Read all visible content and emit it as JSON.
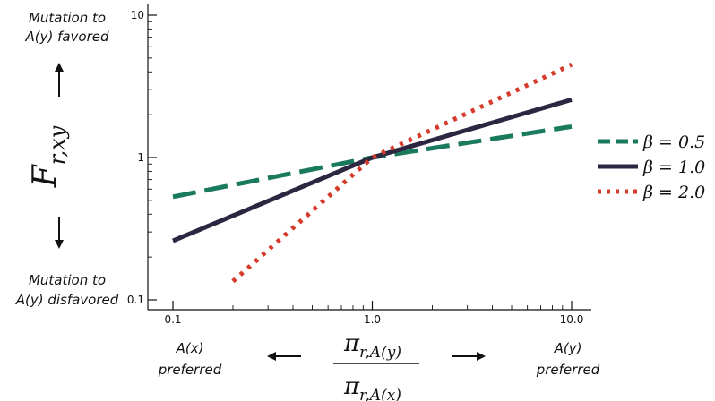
{
  "chart_data": {
    "type": "line",
    "xscale": "log",
    "yscale": "log",
    "xlim": [
      0.1,
      10.0
    ],
    "ylim": [
      0.1,
      10
    ],
    "x_ticks": [
      "0.1",
      "1.0",
      "10.0"
    ],
    "y_ticks": [
      "0.1",
      "1",
      "10"
    ],
    "ylabel": "F_{r,xy}",
    "xlabel_numerator": "π_{r,A(y)}",
    "xlabel_denominator": "π_{r,A(x)}",
    "annotations": {
      "top_left_line1": "Mutation to",
      "top_left_line2": "A(y) favored",
      "bottom_left_line1": "Mutation to",
      "bottom_left_line2": "A(y) disfavored",
      "x_left_line1": "A(x)",
      "x_left_line2": "preferred",
      "x_right_line1": "A(y)",
      "x_right_line2": "preferred"
    },
    "series": [
      {
        "name": "β = 0.5",
        "beta": 0.5,
        "color": "#1a7a5e",
        "style": "dashed",
        "x": [
          0.1,
          1.0,
          10.0
        ],
        "y": [
          0.53,
          1.0,
          1.65
        ]
      },
      {
        "name": "β = 1.0",
        "beta": 1.0,
        "color": "#2d2640",
        "style": "solid",
        "x": [
          0.1,
          1.0,
          10.0
        ],
        "y": [
          0.26,
          1.0,
          2.55
        ]
      },
      {
        "name": "β = 2.0",
        "beta": 2.0,
        "color": "#d63a2b",
        "style": "dotted",
        "x": [
          0.2,
          1.0,
          10.0
        ],
        "y": [
          0.135,
          1.0,
          4.5
        ]
      }
    ],
    "legend": [
      {
        "name": "β = 0.5",
        "math": "β = 0.5"
      },
      {
        "name": "β = 1.0",
        "math": "β = 1.0"
      },
      {
        "name": "β = 2.0",
        "math": "β = 2.0"
      }
    ],
    "legend_position": "right"
  }
}
